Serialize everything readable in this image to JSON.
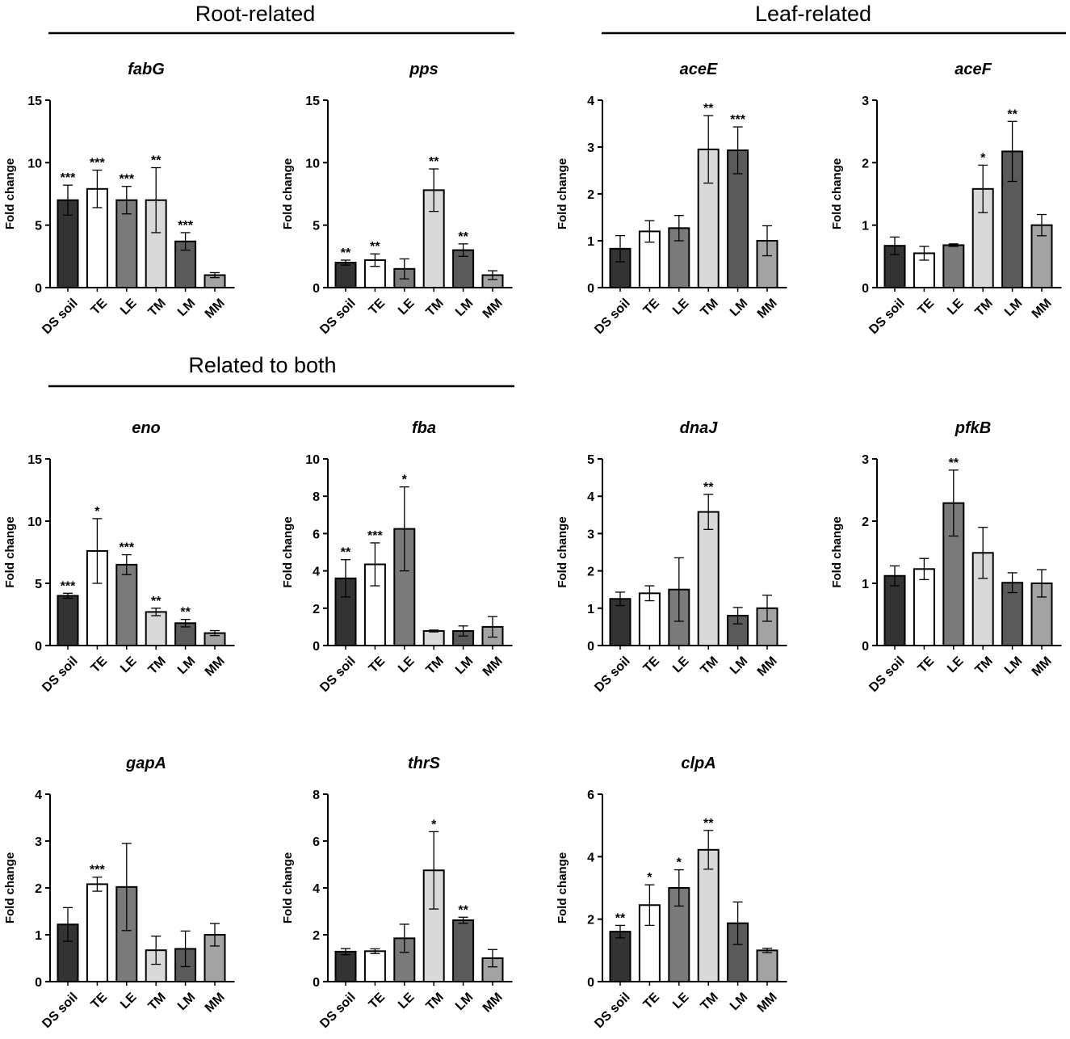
{
  "figure": {
    "sections": [
      {
        "id": "root",
        "label": "Root-related"
      },
      {
        "id": "leaf",
        "label": "Leaf-related"
      },
      {
        "id": "both",
        "label": "Related to both"
      }
    ],
    "y_axis_label": "Fold change",
    "colors": {
      "DS soil": "#333333",
      "TE": "#ffffff",
      "LE": "#7a7a7a",
      "TM": "#d9d9d9",
      "LM": "#5a5a5a",
      "MM": "#a3a3a3",
      "stroke": "#000000"
    }
  },
  "chart_data": [
    {
      "type": "bar",
      "title": "fabG",
      "categories": [
        "DS soil",
        "TE",
        "LE",
        "TM",
        "LM",
        "MM"
      ],
      "xlabel": "",
      "ylabel": "Fold change",
      "ylim": [
        0,
        15
      ],
      "yticks": [
        0,
        5,
        10,
        15
      ],
      "values": [
        7.0,
        7.9,
        7.0,
        7.0,
        3.7,
        1.0
      ],
      "errors": [
        1.2,
        1.5,
        1.1,
        2.6,
        0.7,
        0.2
      ],
      "significance": [
        "***",
        "***",
        "***",
        "**",
        "***",
        ""
      ]
    },
    {
      "type": "bar",
      "title": "pps",
      "categories": [
        "DS soil",
        "TE",
        "LE",
        "TM",
        "LM",
        "MM"
      ],
      "xlabel": "",
      "ylabel": "Fold change",
      "ylim": [
        0,
        15
      ],
      "yticks": [
        0,
        5,
        10,
        15
      ],
      "values": [
        2.0,
        2.2,
        1.5,
        7.8,
        3.0,
        1.0
      ],
      "errors": [
        0.2,
        0.5,
        0.8,
        1.7,
        0.5,
        0.35
      ],
      "significance": [
        "**",
        "**",
        "",
        "**",
        "**",
        ""
      ]
    },
    {
      "type": "bar",
      "title": "aceE",
      "categories": [
        "DS soil",
        "TE",
        "LE",
        "TM",
        "LM",
        "MM"
      ],
      "xlabel": "",
      "ylabel": "Fold change",
      "ylim": [
        0,
        4
      ],
      "yticks": [
        0,
        1,
        2,
        3,
        4
      ],
      "values": [
        0.83,
        1.2,
        1.27,
        2.95,
        2.93,
        1.0
      ],
      "errors": [
        0.28,
        0.23,
        0.27,
        0.72,
        0.5,
        0.32
      ],
      "significance": [
        "",
        "",
        "",
        "**",
        "***",
        ""
      ]
    },
    {
      "type": "bar",
      "title": "aceF",
      "categories": [
        "DS soil",
        "TE",
        "LE",
        "TM",
        "LM",
        "MM"
      ],
      "xlabel": "",
      "ylabel": "Fold change",
      "ylim": [
        0,
        3
      ],
      "yticks": [
        0,
        1,
        2,
        3
      ],
      "values": [
        0.67,
        0.55,
        0.68,
        1.58,
        2.18,
        1.0
      ],
      "errors": [
        0.14,
        0.11,
        0.02,
        0.38,
        0.48,
        0.17
      ],
      "significance": [
        "",
        "",
        "",
        "*",
        "**",
        ""
      ]
    },
    {
      "type": "bar",
      "title": "eno",
      "categories": [
        "DS soil",
        "TE",
        "LE",
        "TM",
        "LM",
        "MM"
      ],
      "xlabel": "",
      "ylabel": "Fold change",
      "ylim": [
        0,
        15
      ],
      "yticks": [
        0,
        5,
        10,
        15
      ],
      "values": [
        4.0,
        7.6,
        6.5,
        2.7,
        1.8,
        1.0
      ],
      "errors": [
        0.2,
        2.6,
        0.8,
        0.3,
        0.3,
        0.2
      ],
      "significance": [
        "***",
        "*",
        "***",
        "**",
        "**",
        ""
      ]
    },
    {
      "type": "bar",
      "title": "fba",
      "categories": [
        "DS soil",
        "TE",
        "LE",
        "TM",
        "LM",
        "MM"
      ],
      "xlabel": "",
      "ylabel": "Fold change",
      "ylim": [
        0,
        10
      ],
      "yticks": [
        0,
        2,
        4,
        6,
        8,
        10
      ],
      "values": [
        3.6,
        4.35,
        6.25,
        0.78,
        0.78,
        1.0
      ],
      "errors": [
        1.0,
        1.15,
        2.25,
        0.05,
        0.27,
        0.55
      ],
      "significance": [
        "**",
        "***",
        "*",
        "",
        "",
        ""
      ]
    },
    {
      "type": "bar",
      "title": "dnaJ",
      "categories": [
        "DS soil",
        "TE",
        "LE",
        "TM",
        "LM",
        "MM"
      ],
      "xlabel": "",
      "ylabel": "Fold change",
      "ylim": [
        0,
        5
      ],
      "yticks": [
        0,
        1,
        2,
        3,
        4,
        5
      ],
      "values": [
        1.25,
        1.4,
        1.5,
        3.58,
        0.8,
        1.0
      ],
      "errors": [
        0.18,
        0.2,
        0.85,
        0.47,
        0.22,
        0.35
      ],
      "significance": [
        "",
        "",
        "",
        "**",
        "",
        ""
      ]
    },
    {
      "type": "bar",
      "title": "pfkB",
      "categories": [
        "DS soil",
        "TE",
        "LE",
        "TM",
        "LM",
        "MM"
      ],
      "xlabel": "",
      "ylabel": "Fold change",
      "ylim": [
        0,
        3
      ],
      "yticks": [
        0,
        1,
        2,
        3
      ],
      "values": [
        1.12,
        1.23,
        2.29,
        1.49,
        1.01,
        1.0
      ],
      "errors": [
        0.16,
        0.17,
        0.53,
        0.41,
        0.16,
        0.22
      ],
      "significance": [
        "",
        "",
        "**",
        "",
        "",
        ""
      ]
    },
    {
      "type": "bar",
      "title": "gapA",
      "categories": [
        "DS soil",
        "TE",
        "LE",
        "TM",
        "LM",
        "MM"
      ],
      "xlabel": "",
      "ylabel": "Fold change",
      "ylim": [
        0,
        4
      ],
      "yticks": [
        0,
        1,
        2,
        3,
        4
      ],
      "values": [
        1.22,
        2.08,
        2.02,
        0.67,
        0.7,
        1.0
      ],
      "errors": [
        0.36,
        0.15,
        0.93,
        0.3,
        0.38,
        0.24
      ],
      "significance": [
        "",
        "***",
        "",
        "",
        "",
        ""
      ]
    },
    {
      "type": "bar",
      "title": "thrS",
      "categories": [
        "DS soil",
        "TE",
        "LE",
        "TM",
        "LM",
        "MM"
      ],
      "xlabel": "",
      "ylabel": "Fold change",
      "ylim": [
        0,
        8
      ],
      "yticks": [
        0,
        2,
        4,
        6,
        8
      ],
      "values": [
        1.28,
        1.3,
        1.85,
        4.75,
        2.62,
        1.0
      ],
      "errors": [
        0.13,
        0.1,
        0.6,
        1.65,
        0.13,
        0.37
      ],
      "significance": [
        "",
        "",
        "",
        "*",
        "**",
        ""
      ]
    },
    {
      "type": "bar",
      "title": "clpA",
      "categories": [
        "DS soil",
        "TE",
        "LE",
        "TM",
        "LM",
        "MM"
      ],
      "xlabel": "",
      "ylabel": "Fold change",
      "ylim": [
        0,
        6
      ],
      "yticks": [
        0,
        2,
        4,
        6
      ],
      "values": [
        1.6,
        2.45,
        3.0,
        4.22,
        1.87,
        1.0
      ],
      "errors": [
        0.2,
        0.65,
        0.58,
        0.62,
        0.68,
        0.07
      ],
      "significance": [
        "**",
        "*",
        "*",
        "**",
        "",
        ""
      ]
    }
  ]
}
